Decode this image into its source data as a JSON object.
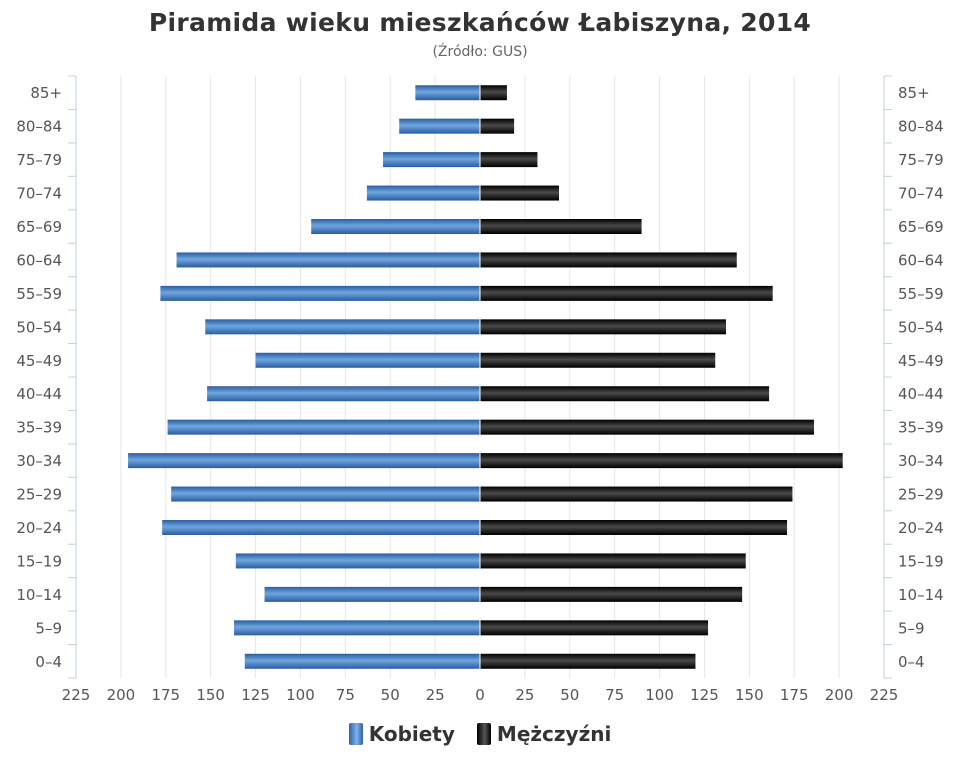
{
  "title": "Piramida wieku mieszkańców Łabiszyna, 2014",
  "subtitle": "(Źródło: GUS)",
  "chart_data": {
    "type": "bar",
    "orientation": "horizontal-pyramid",
    "categories": [
      "85+",
      "80–84",
      "75–79",
      "70–74",
      "65–69",
      "60–64",
      "55–59",
      "50–54",
      "45–49",
      "40–44",
      "35–39",
      "30–34",
      "25–29",
      "20–24",
      "15–19",
      "10–14",
      "5–9",
      "0–4"
    ],
    "series": [
      {
        "name": "Kobiety",
        "side": "left",
        "color": "#3b79c0",
        "values": [
          36,
          45,
          54,
          63,
          94,
          169,
          178,
          153,
          125,
          152,
          174,
          196,
          172,
          177,
          136,
          120,
          137,
          131
        ]
      },
      {
        "name": "Mężczyźni",
        "side": "right",
        "color": "#111111",
        "values": [
          15,
          19,
          32,
          44,
          90,
          143,
          163,
          137,
          131,
          161,
          186,
          202,
          174,
          171,
          148,
          146,
          127,
          120
        ]
      }
    ],
    "xlim": [
      -225,
      225
    ],
    "xticks": [
      -225,
      -200,
      -175,
      -150,
      -125,
      -100,
      -75,
      -50,
      -25,
      0,
      25,
      50,
      75,
      100,
      125,
      150,
      175,
      200,
      225
    ],
    "xtick_labels": [
      "225",
      "200",
      "175",
      "150",
      "125",
      "100",
      "75",
      "50",
      "25",
      "0",
      "25",
      "50",
      "75",
      "100",
      "125",
      "150",
      "175",
      "200",
      "225"
    ],
    "grid": true,
    "legend_position": "bottom-center"
  }
}
